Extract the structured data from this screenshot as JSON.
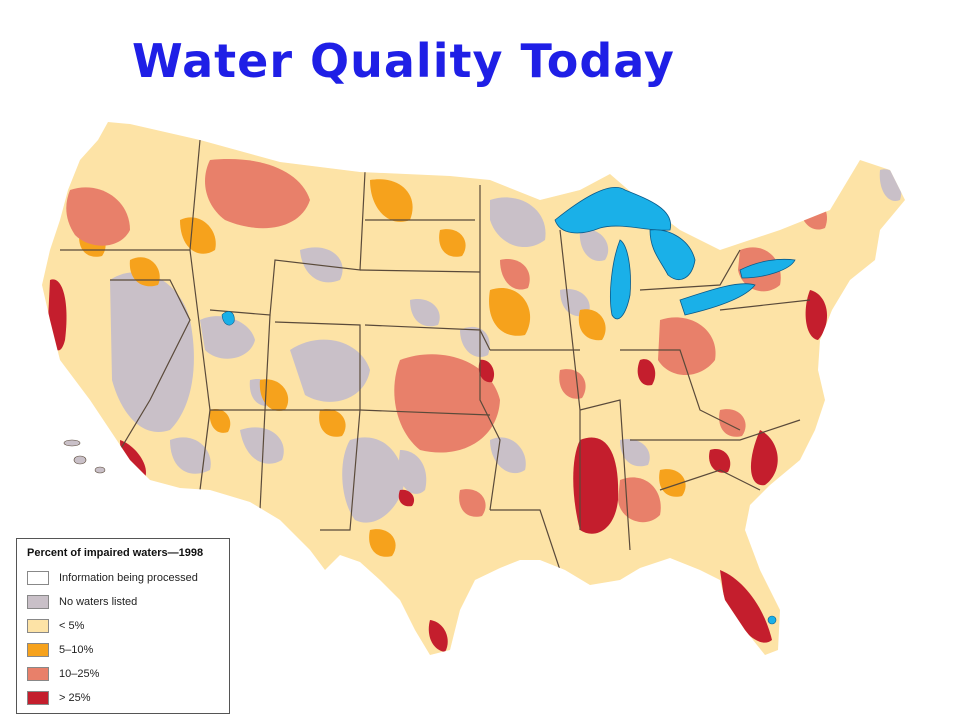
{
  "title": "Water Quality Today",
  "legend": {
    "title": "Percent of impaired waters—1998",
    "items": [
      {
        "label": "Information being processed",
        "color": "#ffffff"
      },
      {
        "label": "No waters listed",
        "color": "#c9c0c8"
      },
      {
        "label": "< 5%",
        "color": "#fde3a6"
      },
      {
        "label": "5–10%",
        "color": "#f6a21c"
      },
      {
        "label": "10–25%",
        "color": "#e8806a"
      },
      {
        "label": "> 25%",
        "color": "#c41e2d"
      }
    ]
  },
  "colors": {
    "water": "#1ab0e8",
    "border": "#5a4a3a",
    "title": "#1f1fe6"
  }
}
